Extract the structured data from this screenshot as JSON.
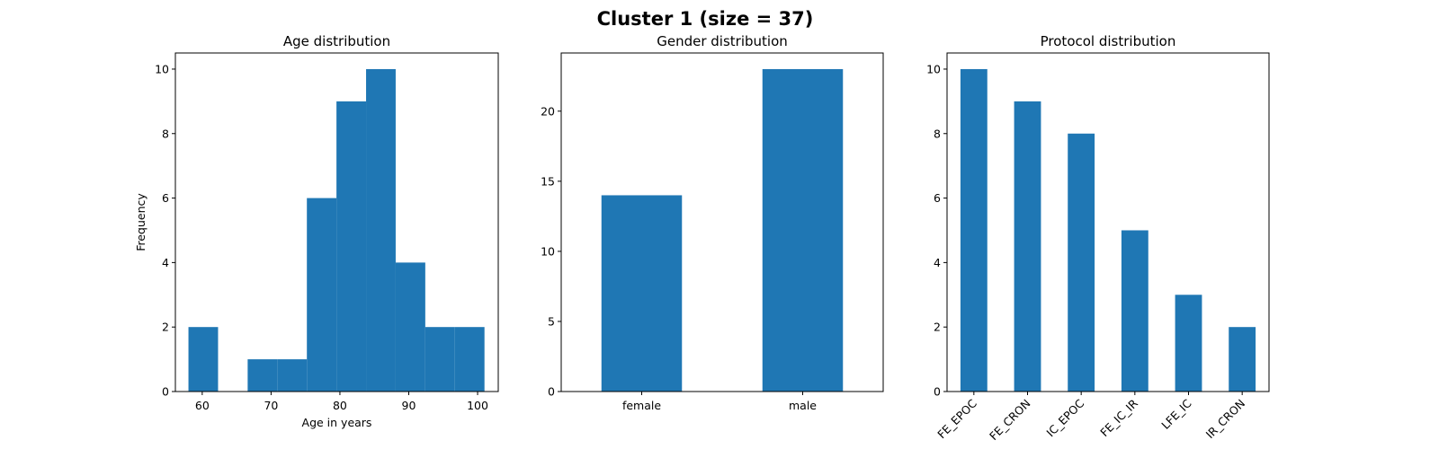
{
  "figure": {
    "title": "Cluster 1 (size = 37)"
  },
  "chart_data": [
    {
      "type": "bar",
      "kind": "histogram",
      "title": "Age distribution",
      "xlabel": "Age in years",
      "ylabel": "Frequency",
      "xlim": [
        56.1,
        103.0
      ],
      "ylim": [
        0,
        10.5
      ],
      "xticks": [
        60,
        70,
        80,
        90,
        100
      ],
      "yticks": [
        0,
        2,
        4,
        6,
        8,
        10
      ],
      "bins": [
        {
          "x0": 58.0,
          "x1": 62.3,
          "value": 2
        },
        {
          "x0": 62.3,
          "x1": 66.6,
          "value": 0
        },
        {
          "x0": 66.6,
          "x1": 70.9,
          "value": 1
        },
        {
          "x0": 70.9,
          "x1": 75.2,
          "value": 1
        },
        {
          "x0": 75.2,
          "x1": 79.5,
          "value": 6
        },
        {
          "x0": 79.5,
          "x1": 83.8,
          "value": 9
        },
        {
          "x0": 83.8,
          "x1": 88.1,
          "value": 10
        },
        {
          "x0": 88.1,
          "x1": 92.4,
          "value": 4
        },
        {
          "x0": 92.4,
          "x1": 96.7,
          "value": 2
        },
        {
          "x0": 96.7,
          "x1": 101.0,
          "value": 2
        }
      ],
      "color": "#1f77b4"
    },
    {
      "type": "bar",
      "title": "Gender distribution",
      "xlabel": "",
      "ylabel": "",
      "categories": [
        "female",
        "male"
      ],
      "values": [
        14,
        23
      ],
      "ylim": [
        0,
        24.15
      ],
      "yticks": [
        0,
        5,
        10,
        15,
        20
      ],
      "color": "#1f77b4"
    },
    {
      "type": "bar",
      "title": "Protocol distribution",
      "xlabel": "",
      "ylabel": "",
      "categories": [
        "FE_EPOC",
        "FE_CRON",
        "IC_EPOC",
        "FE_IC_IR",
        "LFE_IC",
        "IR_CRON"
      ],
      "values": [
        10,
        9,
        8,
        5,
        3,
        2
      ],
      "ylim": [
        0,
        10.5
      ],
      "yticks": [
        0,
        2,
        4,
        6,
        8,
        10
      ],
      "tick_rotation": 45,
      "color": "#1f77b4"
    }
  ]
}
